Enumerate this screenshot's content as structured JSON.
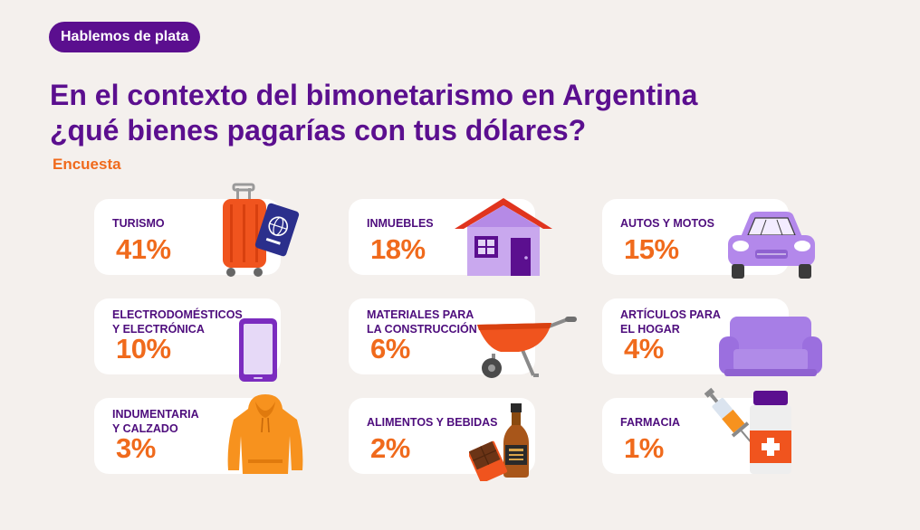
{
  "badge": "Hablemos de plata",
  "title_line1": "En el contexto del bimonetarismo en Argentina",
  "title_line2": "¿qué bienes pagarías con tus dólares?",
  "subtitle": "Encuesta",
  "colors": {
    "purple": "#5b0f8f",
    "orange": "#f06a1c",
    "background": "#f4f0ed"
  },
  "chart_data": {
    "type": "table",
    "unit": "%",
    "categories": [
      "TURISMO",
      "INMUEBLES",
      "AUTOS Y MOTOS",
      "ELECTRODOMÉSTICOS Y ELECTRÓNICA",
      "MATERIALES PARA LA CONSTRUCCIÓN",
      "ARTÍCULOS PARA EL HOGAR",
      "INDUMENTARIA Y CALZADO",
      "ALIMENTOS Y BEBIDAS",
      "FARMACIA"
    ],
    "values": [
      41,
      18,
      15,
      10,
      6,
      4,
      3,
      2,
      1
    ]
  },
  "cards": [
    {
      "label_lines": [
        "TURISMO"
      ],
      "value": "41%",
      "icon": "suitcase-icon"
    },
    {
      "label_lines": [
        "INMUEBLES"
      ],
      "value": "18%",
      "icon": "house-icon"
    },
    {
      "label_lines": [
        "AUTOS Y MOTOS"
      ],
      "value": "15%",
      "icon": "car-icon"
    },
    {
      "label_lines": [
        "ELECTRODOMÉSTICOS",
        "Y ELECTRÓNICA"
      ],
      "value": "10%",
      "icon": "phone-icon"
    },
    {
      "label_lines": [
        "MATERIALES PARA",
        "LA CONSTRUCCIÓN"
      ],
      "value": "6%",
      "icon": "wheelbarrow-icon"
    },
    {
      "label_lines": [
        "ARTÍCULOS PARA",
        "EL HOGAR"
      ],
      "value": "4%",
      "icon": "sofa-icon"
    },
    {
      "label_lines": [
        "INDUMENTARIA",
        "Y CALZADO"
      ],
      "value": "3%",
      "icon": "hoodie-icon"
    },
    {
      "label_lines": [
        "ALIMENTOS Y BEBIDAS"
      ],
      "value": "2%",
      "icon": "bottle-chocolate-icon"
    },
    {
      "label_lines": [
        "FARMACIA"
      ],
      "value": "1%",
      "icon": "medicine-icon"
    }
  ]
}
